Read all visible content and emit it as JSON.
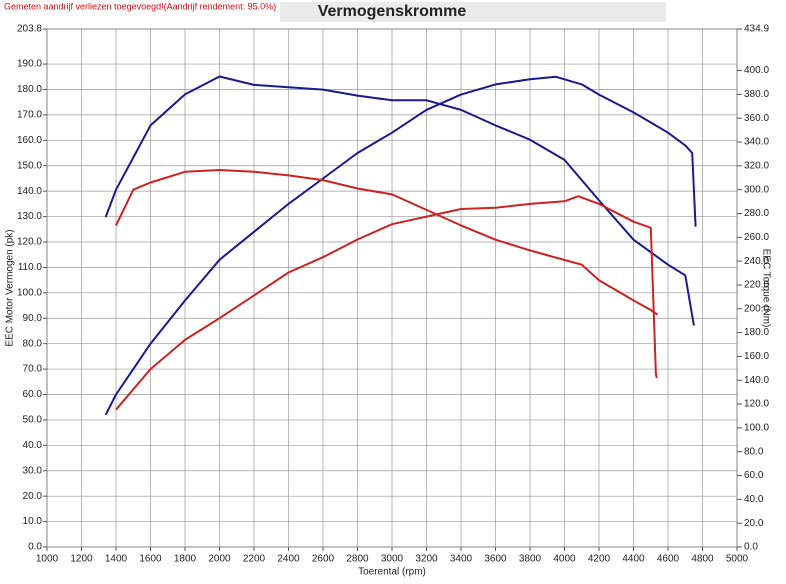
{
  "chart_data": {
    "type": "line",
    "title": "Vermogenskromme",
    "subtitle": "Gemeten aandrijf verliezen toegevoegd!(Aandrijf rendement: 95.0%)",
    "x_label": "Toerental (rpm)",
    "y_label": "EEC Motor Vermogen (pk)",
    "y2_label": "EEC Torque (Nm)",
    "xlim": [
      1000,
      5000
    ],
    "xticks": [
      1000,
      1200,
      1400,
      1600,
      1800,
      2000,
      2200,
      2400,
      2600,
      2800,
      3000,
      3200,
      3400,
      3600,
      3800,
      4000,
      4200,
      4400,
      4600,
      4800,
      5000
    ],
    "ylim": [
      0,
      203.8
    ],
    "yticks": [
      {
        "value": 0,
        "label": "0.0"
      },
      {
        "value": 10,
        "label": "10.0"
      },
      {
        "value": 20,
        "label": "20.0"
      },
      {
        "value": 30,
        "label": "30.0"
      },
      {
        "value": 40,
        "label": "40.0"
      },
      {
        "value": 50,
        "label": "50.0"
      },
      {
        "value": 60,
        "label": "60.0"
      },
      {
        "value": 70,
        "label": "70.0"
      },
      {
        "value": 80,
        "label": "80.0"
      },
      {
        "value": 90,
        "label": "90.0"
      },
      {
        "value": 100,
        "label": "100.0"
      },
      {
        "value": 110,
        "label": "110.0"
      },
      {
        "value": 120,
        "label": "120.0"
      },
      {
        "value": 130,
        "label": "130.0"
      },
      {
        "value": 140,
        "label": "140.0"
      },
      {
        "value": 150,
        "label": "150.0"
      },
      {
        "value": 160,
        "label": "160.0"
      },
      {
        "value": 170,
        "label": "170.0"
      },
      {
        "value": 180,
        "label": "180.0"
      },
      {
        "value": 190,
        "label": "190.0"
      },
      203.8
    ],
    "y2lim": [
      0,
      434.9
    ],
    "y2ticks": [
      {
        "value": 0,
        "label": "0.0"
      },
      {
        "value": 20,
        "label": "20.0"
      },
      {
        "value": 40,
        "label": "40.0"
      },
      {
        "value": 60,
        "label": "60.0"
      },
      {
        "value": 80,
        "label": "80.0"
      },
      {
        "value": 100,
        "label": "100.0"
      },
      {
        "value": 120,
        "label": "120.0"
      },
      {
        "value": 140,
        "label": "140.0"
      },
      {
        "value": 160,
        "label": "160.0"
      },
      {
        "value": 180,
        "label": "180.0"
      },
      {
        "value": 200,
        "label": "200.0"
      },
      {
        "value": 220,
        "label": "220.0"
      },
      {
        "value": 240,
        "label": "240.0"
      },
      {
        "value": 260,
        "label": "260.0"
      },
      {
        "value": 280,
        "label": "280.0"
      },
      {
        "value": 300,
        "label": "300.0"
      },
      {
        "value": 320,
        "label": "320.0"
      },
      {
        "value": 340,
        "label": "340.0"
      },
      {
        "value": 360,
        "label": "360.0"
      },
      {
        "value": 380,
        "label": "380.0"
      },
      {
        "value": 400,
        "label": "400.0"
      },
      434.9
    ],
    "grid": true,
    "series": [
      {
        "color": "#1a1a8c",
        "axis": "y",
        "x": [
          1340,
          1400,
          1600,
          1800,
          2000,
          2200,
          2400,
          2600,
          2800,
          3000,
          3200,
          3400,
          3600,
          3800,
          3950,
          4100,
          4200,
          4400,
          4500,
          4600,
          4700,
          4740,
          4760
        ],
        "values": [
          52,
          60,
          80,
          97,
          113,
          124,
          135,
          145,
          155,
          163,
          172,
          178,
          182,
          184,
          185,
          182,
          178,
          171,
          167,
          163,
          158,
          155,
          126
        ]
      },
      {
        "color": "#1a1a8c",
        "axis": "y2",
        "x": [
          1340,
          1400,
          1600,
          1800,
          2000,
          2200,
          2400,
          2600,
          2800,
          3000,
          3200,
          3400,
          3600,
          3800,
          4000,
          4200,
          4400,
          4600,
          4700,
          4750
        ],
        "values": [
          277,
          300,
          354,
          380,
          395,
          388,
          386,
          384,
          379,
          375,
          375,
          367,
          354,
          342,
          325,
          291,
          258,
          237,
          228,
          186
        ]
      },
      {
        "color": "#cc2222",
        "axis": "y",
        "x": [
          1400,
          1600,
          1800,
          2000,
          2200,
          2400,
          2600,
          2800,
          3000,
          3200,
          3400,
          3600,
          3800,
          4000,
          4080,
          4200,
          4400,
          4500,
          4530,
          4535
        ],
        "values": [
          54,
          70,
          81.5,
          90,
          99,
          108,
          114,
          121,
          127,
          130,
          133,
          133.5,
          135,
          136,
          138,
          135,
          128,
          125.6,
          68,
          66.5
        ]
      },
      {
        "color": "#cc2222",
        "axis": "y2",
        "x": [
          1400,
          1500,
          1600,
          1800,
          2000,
          2200,
          2400,
          2600,
          2800,
          3000,
          3200,
          3400,
          3600,
          3800,
          4000,
          4100,
          4200,
          4400,
          4500,
          4540
        ],
        "values": [
          270,
          300,
          306,
          315,
          316.5,
          315,
          312,
          308,
          301,
          296,
          283,
          270,
          258,
          249,
          241,
          237,
          224,
          207,
          199,
          195
        ]
      }
    ]
  }
}
